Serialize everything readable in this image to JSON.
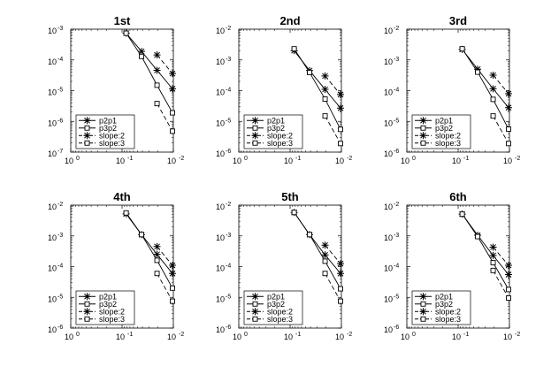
{
  "chart_data": [
    {
      "type": "line",
      "title": "1st",
      "xlabel": "",
      "ylabel": "",
      "xscale": "log",
      "yscale": "log",
      "xlim_exp": [
        0,
        -2
      ],
      "ylim_exp": [
        -7,
        -3
      ],
      "x_tick_labels": [
        [
          "10",
          "0"
        ],
        [
          "10",
          "-1"
        ],
        [
          "10",
          "-2"
        ]
      ],
      "y_tick_labels": [
        [
          "10",
          "-7"
        ],
        [
          "10",
          "-6"
        ],
        [
          "10",
          "-5"
        ],
        [
          "10",
          "-4"
        ],
        [
          "10",
          "-3"
        ]
      ],
      "legend_position": "bottom-left",
      "series": [
        {
          "name": "p2p1",
          "style": "solid",
          "marker": "star",
          "x": [
            0.0833,
            0.0417,
            0.0208,
            0.0104
          ],
          "y": [
            0.00074,
            0.00019,
            4.6e-05,
            1.15e-05
          ]
        },
        {
          "name": "p3p2",
          "style": "solid",
          "marker": "square",
          "x": [
            0.0833,
            0.0417,
            0.0208,
            0.0104
          ],
          "y": [
            0.00074,
            0.00013,
            1.5e-05,
            1.9e-06
          ]
        },
        {
          "name": "slope:2",
          "style": "dashed",
          "marker": "star",
          "x": [
            0.0208,
            0.0104
          ],
          "y": [
            0.000145,
            3.6e-05
          ]
        },
        {
          "name": "slope:3",
          "style": "dashed",
          "marker": "square",
          "x": [
            0.0208,
            0.0104
          ],
          "y": [
            3.8e-06,
            4.8e-07
          ]
        }
      ]
    },
    {
      "type": "line",
      "title": "2nd",
      "xlabel": "",
      "ylabel": "",
      "xscale": "log",
      "yscale": "log",
      "xlim_exp": [
        0,
        -2
      ],
      "ylim_exp": [
        -6,
        -2
      ],
      "x_tick_labels": [
        [
          "10",
          "0"
        ],
        [
          "10",
          "-1"
        ],
        [
          "10",
          "-2"
        ]
      ],
      "y_tick_labels": [
        [
          "10",
          "-6"
        ],
        [
          "10",
          "-5"
        ],
        [
          "10",
          "-4"
        ],
        [
          "10",
          "-3"
        ],
        [
          "10",
          "-2"
        ]
      ],
      "legend_position": "bottom-left",
      "series": [
        {
          "name": "p2p1",
          "style": "solid",
          "marker": "star",
          "x": [
            0.0833,
            0.0417,
            0.0208,
            0.0104
          ],
          "y": [
            0.002,
            0.00045,
            0.00011,
            2.7e-05
          ]
        },
        {
          "name": "p3p2",
          "style": "solid",
          "marker": "square",
          "x": [
            0.0833,
            0.0417,
            0.0208,
            0.0104
          ],
          "y": [
            0.0023,
            0.00039,
            5.3e-05,
            5.5e-06
          ]
        },
        {
          "name": "slope:2",
          "style": "dashed",
          "marker": "star",
          "x": [
            0.0208,
            0.0104
          ],
          "y": [
            0.0003,
            7.5e-05
          ]
        },
        {
          "name": "slope:3",
          "style": "dashed",
          "marker": "square",
          "x": [
            0.0208,
            0.0104
          ],
          "y": [
            1.5e-05,
            1.9e-06
          ]
        }
      ]
    },
    {
      "type": "line",
      "title": "3rd",
      "xlabel": "",
      "ylabel": "",
      "xscale": "log",
      "yscale": "log",
      "xlim_exp": [
        0,
        -2
      ],
      "ylim_exp": [
        -6,
        -2
      ],
      "x_tick_labels": [
        [
          "10",
          "0"
        ],
        [
          "10",
          "-1"
        ],
        [
          "10",
          "-2"
        ]
      ],
      "y_tick_labels": [
        [
          "10",
          "-6"
        ],
        [
          "10",
          "-5"
        ],
        [
          "10",
          "-4"
        ],
        [
          "10",
          "-3"
        ],
        [
          "10",
          "-2"
        ]
      ],
      "legend_position": "bottom-left",
      "series": [
        {
          "name": "p2p1",
          "style": "solid",
          "marker": "star",
          "x": [
            0.0833,
            0.0417,
            0.0208,
            0.0104
          ],
          "y": [
            0.0022,
            0.0005,
            0.000115,
            2.8e-05
          ]
        },
        {
          "name": "p3p2",
          "style": "solid",
          "marker": "square",
          "x": [
            0.0833,
            0.0417,
            0.0208,
            0.0104
          ],
          "y": [
            0.0023,
            0.0004,
            5.2e-05,
            5.6e-06
          ]
        },
        {
          "name": "slope:2",
          "style": "dashed",
          "marker": "star",
          "x": [
            0.0208,
            0.0104
          ],
          "y": [
            0.00032,
            8e-05
          ]
        },
        {
          "name": "slope:3",
          "style": "dashed",
          "marker": "square",
          "x": [
            0.0208,
            0.0104
          ],
          "y": [
            1.5e-05,
            1.9e-06
          ]
        }
      ]
    },
    {
      "type": "line",
      "title": "4th",
      "xlabel": "",
      "ylabel": "",
      "xscale": "log",
      "yscale": "log",
      "xlim_exp": [
        0,
        -2
      ],
      "ylim_exp": [
        -6,
        -2
      ],
      "x_tick_labels": [
        [
          "10",
          "0"
        ],
        [
          "10",
          "-1"
        ],
        [
          "10",
          "-2"
        ]
      ],
      "y_tick_labels": [
        [
          "10",
          "-6"
        ],
        [
          "10",
          "-5"
        ],
        [
          "10",
          "-4"
        ],
        [
          "10",
          "-3"
        ],
        [
          "10",
          "-2"
        ]
      ],
      "legend_position": "bottom-left",
      "series": [
        {
          "name": "p2p1",
          "style": "solid",
          "marker": "star",
          "x": [
            0.0833,
            0.0417,
            0.0208,
            0.0104
          ],
          "y": [
            0.0052,
            0.0011,
            0.00025,
            6e-05
          ]
        },
        {
          "name": "p3p2",
          "style": "solid",
          "marker": "square",
          "x": [
            0.0833,
            0.0417,
            0.0208,
            0.0104
          ],
          "y": [
            0.0056,
            0.0011,
            0.00016,
            2e-05
          ]
        },
        {
          "name": "slope:2",
          "style": "dashed",
          "marker": "star",
          "x": [
            0.0208,
            0.0104
          ],
          "y": [
            0.00045,
            0.00011
          ]
        },
        {
          "name": "slope:3",
          "style": "dashed",
          "marker": "square",
          "x": [
            0.0208,
            0.0104
          ],
          "y": [
            6e-05,
            7.5e-06
          ]
        }
      ]
    },
    {
      "type": "line",
      "title": "5th",
      "xlabel": "",
      "ylabel": "",
      "xscale": "log",
      "yscale": "log",
      "xlim_exp": [
        0,
        -2
      ],
      "ylim_exp": [
        -6,
        -2
      ],
      "x_tick_labels": [
        [
          "10",
          "0"
        ],
        [
          "10",
          "-1"
        ],
        [
          "10",
          "-2"
        ]
      ],
      "y_tick_labels": [
        [
          "10",
          "-6"
        ],
        [
          "10",
          "-5"
        ],
        [
          "10",
          "-4"
        ],
        [
          "10",
          "-3"
        ],
        [
          "10",
          "-2"
        ]
      ],
      "legend_position": "bottom-left",
      "series": [
        {
          "name": "p2p1",
          "style": "solid",
          "marker": "star",
          "x": [
            0.0833,
            0.0417,
            0.0208,
            0.0104
          ],
          "y": [
            0.0058,
            0.0011,
            0.00024,
            6e-05
          ]
        },
        {
          "name": "p3p2",
          "style": "solid",
          "marker": "square",
          "x": [
            0.0833,
            0.0417,
            0.0208,
            0.0104
          ],
          "y": [
            0.0058,
            0.0011,
            0.00015,
            1.9e-05
          ]
        },
        {
          "name": "slope:2",
          "style": "dashed",
          "marker": "star",
          "x": [
            0.0208,
            0.0104
          ],
          "y": [
            0.0005,
            0.000125
          ]
        },
        {
          "name": "slope:3",
          "style": "dashed",
          "marker": "square",
          "x": [
            0.0208,
            0.0104
          ],
          "y": [
            6e-05,
            7.5e-06
          ]
        }
      ]
    },
    {
      "type": "line",
      "title": "6th",
      "xlabel": "",
      "ylabel": "",
      "xscale": "log",
      "yscale": "log",
      "xlim_exp": [
        0,
        -2
      ],
      "ylim_exp": [
        -6,
        -2
      ],
      "x_tick_labels": [
        [
          "10",
          "0"
        ],
        [
          "10",
          "-1"
        ],
        [
          "10",
          "-2"
        ]
      ],
      "y_tick_labels": [
        [
          "10",
          "-6"
        ],
        [
          "10",
          "-5"
        ],
        [
          "10",
          "-4"
        ],
        [
          "10",
          "-3"
        ],
        [
          "10",
          "-2"
        ]
      ],
      "legend_position": "bottom-left",
      "series": [
        {
          "name": "p2p1",
          "style": "solid",
          "marker": "star",
          "x": [
            0.0833,
            0.0417,
            0.0208,
            0.0104
          ],
          "y": [
            0.0051,
            0.00105,
            0.00023,
            5.5e-05
          ]
        },
        {
          "name": "p3p2",
          "style": "solid",
          "marker": "square",
          "x": [
            0.0833,
            0.0417,
            0.0208,
            0.0104
          ],
          "y": [
            0.0051,
            0.00095,
            0.000135,
            1.8e-05
          ]
        },
        {
          "name": "slope:2",
          "style": "dashed",
          "marker": "star",
          "x": [
            0.0208,
            0.0104
          ],
          "y": [
            0.00043,
            0.00011
          ]
        },
        {
          "name": "slope:3",
          "style": "dashed",
          "marker": "square",
          "x": [
            0.0208,
            0.0104
          ],
          "y": [
            7.5e-05,
            9.5e-06
          ]
        }
      ]
    }
  ]
}
